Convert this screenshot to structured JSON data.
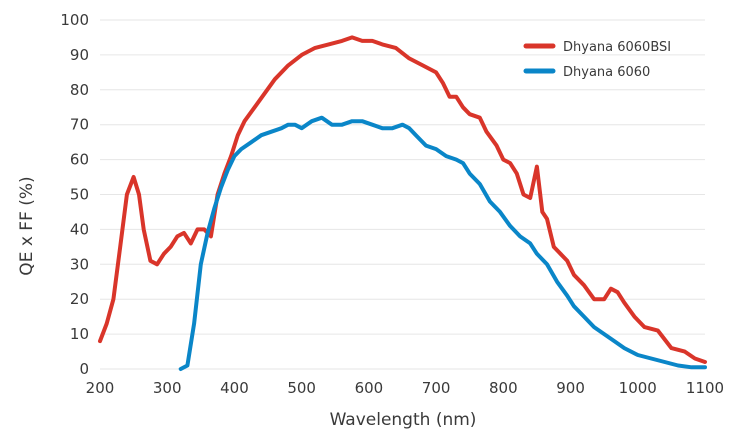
{
  "chart_data": {
    "type": "line",
    "title": "",
    "xlabel": "Wavelength (nm)",
    "ylabel": "QE x FF (%)",
    "xlim": [
      200,
      1100
    ],
    "ylim": [
      0,
      100
    ],
    "x_ticks": [
      200,
      300,
      400,
      500,
      600,
      700,
      800,
      900,
      1000,
      1100
    ],
    "y_ticks": [
      0,
      10,
      20,
      30,
      40,
      50,
      60,
      70,
      80,
      90,
      100
    ],
    "grid": "horizontal",
    "legend_position": "top-right",
    "series": [
      {
        "name": "Dhyana 6060BSI",
        "color": "#d9352a",
        "points": [
          [
            200,
            8
          ],
          [
            210,
            13
          ],
          [
            220,
            20
          ],
          [
            230,
            35
          ],
          [
            240,
            50
          ],
          [
            250,
            55
          ],
          [
            258,
            50
          ],
          [
            265,
            40
          ],
          [
            275,
            31
          ],
          [
            285,
            30
          ],
          [
            295,
            33
          ],
          [
            305,
            35
          ],
          [
            315,
            38
          ],
          [
            325,
            39
          ],
          [
            335,
            36
          ],
          [
            345,
            40
          ],
          [
            355,
            40
          ],
          [
            365,
            38
          ],
          [
            375,
            50
          ],
          [
            385,
            56
          ],
          [
            395,
            61
          ],
          [
            405,
            67
          ],
          [
            415,
            71
          ],
          [
            430,
            75
          ],
          [
            445,
            79
          ],
          [
            460,
            83
          ],
          [
            480,
            87
          ],
          [
            500,
            90
          ],
          [
            520,
            92
          ],
          [
            540,
            93
          ],
          [
            560,
            94
          ],
          [
            575,
            95
          ],
          [
            590,
            94
          ],
          [
            605,
            94
          ],
          [
            620,
            93
          ],
          [
            640,
            92
          ],
          [
            660,
            89
          ],
          [
            680,
            87
          ],
          [
            700,
            85
          ],
          [
            710,
            82
          ],
          [
            720,
            78
          ],
          [
            730,
            78
          ],
          [
            740,
            75
          ],
          [
            750,
            73
          ],
          [
            765,
            72
          ],
          [
            775,
            68
          ],
          [
            790,
            64
          ],
          [
            800,
            60
          ],
          [
            810,
            59
          ],
          [
            820,
            56
          ],
          [
            830,
            50
          ],
          [
            840,
            49
          ],
          [
            850,
            58
          ],
          [
            858,
            45
          ],
          [
            865,
            43
          ],
          [
            875,
            35
          ],
          [
            885,
            33
          ],
          [
            895,
            31
          ],
          [
            905,
            27
          ],
          [
            920,
            24
          ],
          [
            935,
            20
          ],
          [
            950,
            20
          ],
          [
            960,
            23
          ],
          [
            970,
            22
          ],
          [
            980,
            19
          ],
          [
            995,
            15
          ],
          [
            1010,
            12
          ],
          [
            1030,
            11
          ],
          [
            1050,
            6
          ],
          [
            1070,
            5
          ],
          [
            1085,
            3
          ],
          [
            1100,
            2
          ]
        ]
      },
      {
        "name": "Dhyana 6060",
        "color": "#0a86c8",
        "points": [
          [
            320,
            0
          ],
          [
            330,
            1
          ],
          [
            340,
            13
          ],
          [
            350,
            30
          ],
          [
            360,
            39
          ],
          [
            370,
            46
          ],
          [
            380,
            52
          ],
          [
            390,
            57
          ],
          [
            400,
            61
          ],
          [
            410,
            63
          ],
          [
            425,
            65
          ],
          [
            440,
            67
          ],
          [
            455,
            68
          ],
          [
            470,
            69
          ],
          [
            480,
            70
          ],
          [
            490,
            70
          ],
          [
            500,
            69
          ],
          [
            515,
            71
          ],
          [
            530,
            72
          ],
          [
            545,
            70
          ],
          [
            560,
            70
          ],
          [
            575,
            71
          ],
          [
            590,
            71
          ],
          [
            605,
            70
          ],
          [
            620,
            69
          ],
          [
            635,
            69
          ],
          [
            650,
            70
          ],
          [
            660,
            69
          ],
          [
            670,
            67
          ],
          [
            685,
            64
          ],
          [
            700,
            63
          ],
          [
            715,
            61
          ],
          [
            730,
            60
          ],
          [
            740,
            59
          ],
          [
            750,
            56
          ],
          [
            765,
            53
          ],
          [
            780,
            48
          ],
          [
            795,
            45
          ],
          [
            810,
            41
          ],
          [
            825,
            38
          ],
          [
            840,
            36
          ],
          [
            850,
            33
          ],
          [
            865,
            30
          ],
          [
            880,
            25
          ],
          [
            895,
            21
          ],
          [
            905,
            18
          ],
          [
            920,
            15
          ],
          [
            935,
            12
          ],
          [
            950,
            10
          ],
          [
            965,
            8
          ],
          [
            980,
            6
          ],
          [
            1000,
            4
          ],
          [
            1020,
            3
          ],
          [
            1040,
            2
          ],
          [
            1060,
            1
          ],
          [
            1080,
            0.5
          ],
          [
            1100,
            0.5
          ]
        ]
      }
    ]
  }
}
